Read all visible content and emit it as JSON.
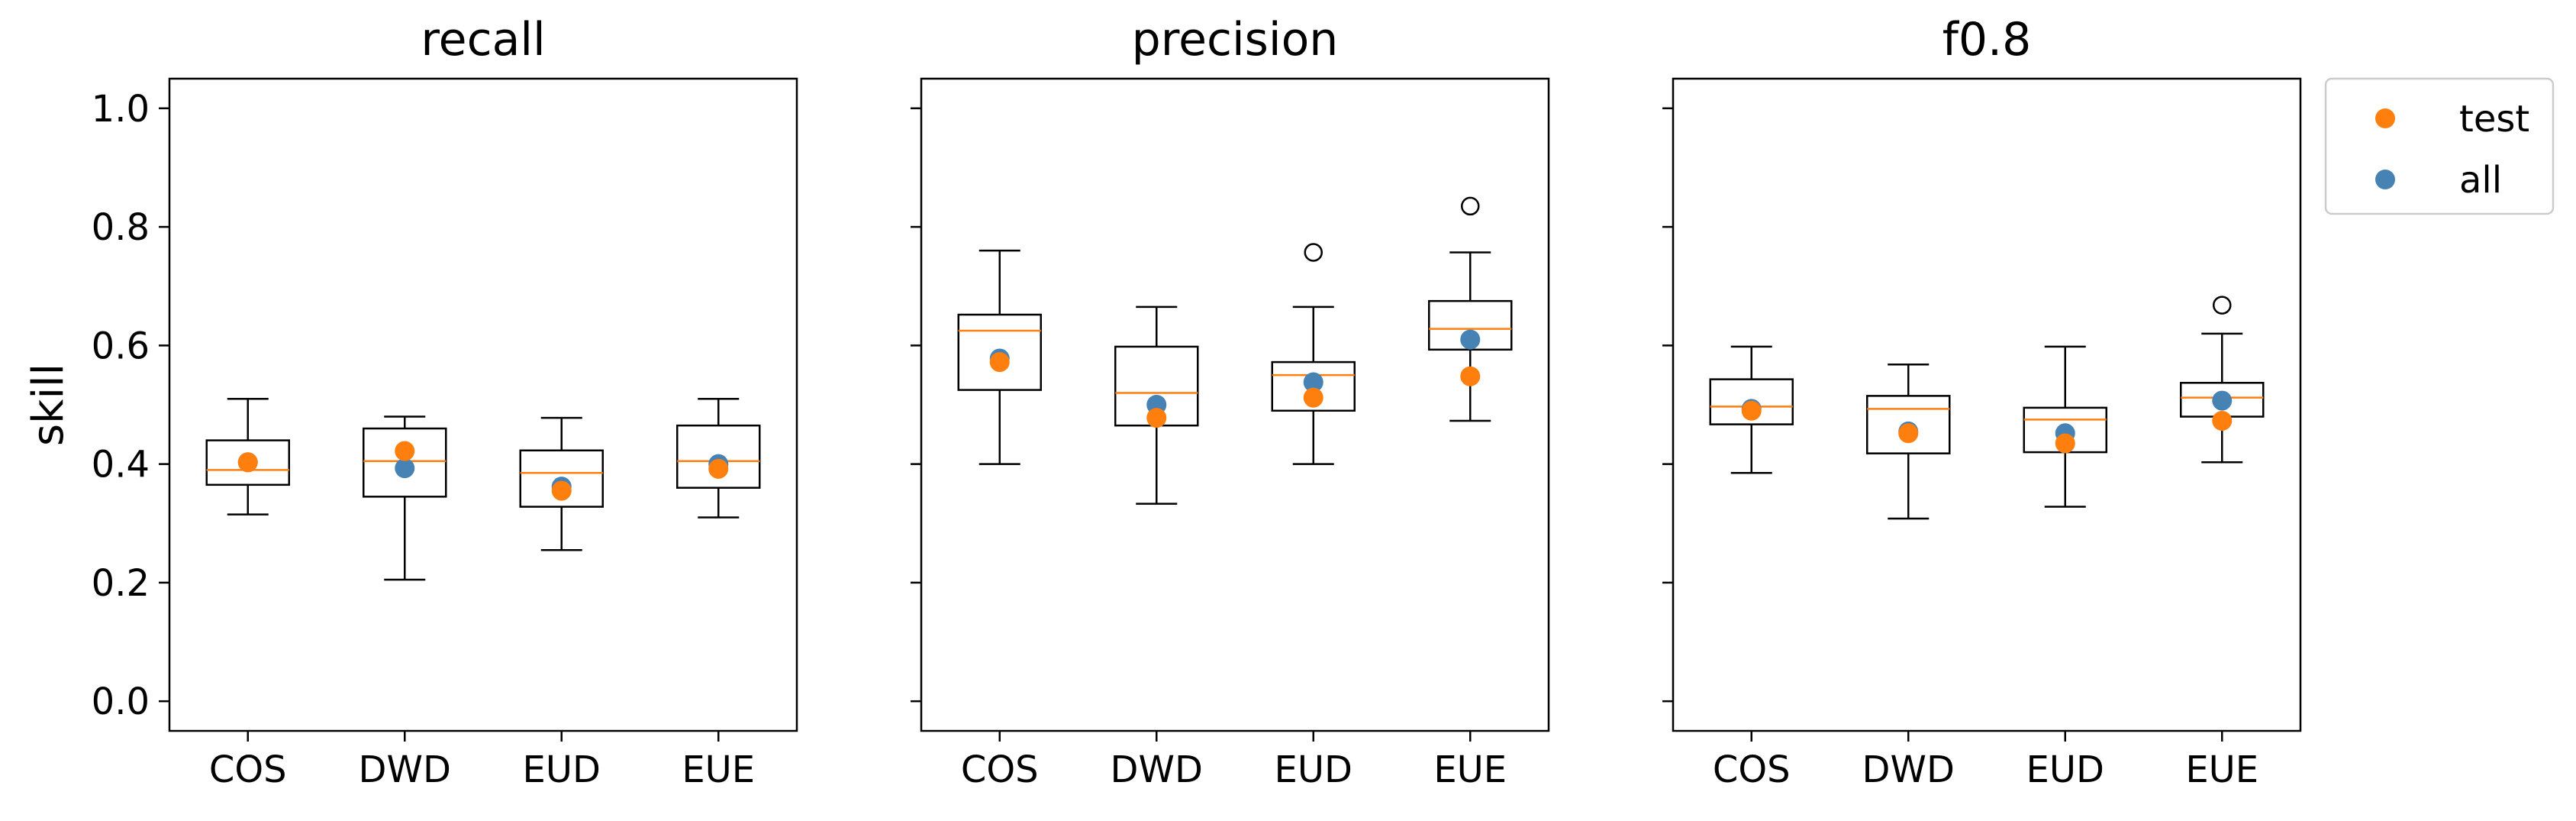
{
  "chart_data": {
    "type": "box",
    "ylabel": "skill",
    "ylim": [
      -0.05,
      1.05
    ],
    "yticks": [
      0.0,
      0.2,
      0.4,
      0.6,
      0.8,
      1.0
    ],
    "ytick_labels": [
      "0.0",
      "0.2",
      "0.4",
      "0.6",
      "0.8",
      "1.0"
    ],
    "categories": [
      "COS",
      "DWD",
      "EUD",
      "EUE"
    ],
    "colors": {
      "box": "#000000",
      "median": "#ff7f0e",
      "test": "#ff7f0e",
      "all": "#4682b4",
      "flier": "#000000"
    },
    "legend": {
      "placement": "outside-top-right",
      "entries": [
        {
          "label": "test",
          "color": "#ff7f0e"
        },
        {
          "label": "all",
          "color": "#4682b4"
        }
      ]
    },
    "panels": [
      {
        "title": "recall",
        "boxes": [
          {
            "category": "COS",
            "whislo": 0.315,
            "q1": 0.365,
            "med": 0.39,
            "q3": 0.44,
            "whishi": 0.51,
            "fliers": [],
            "all": 0.403,
            "test": 0.403
          },
          {
            "category": "DWD",
            "whislo": 0.205,
            "q1": 0.345,
            "med": 0.405,
            "q3": 0.46,
            "whishi": 0.48,
            "fliers": [],
            "all": 0.393,
            "test": 0.422
          },
          {
            "category": "EUD",
            "whislo": 0.255,
            "q1": 0.328,
            "med": 0.385,
            "q3": 0.423,
            "whishi": 0.478,
            "fliers": [],
            "all": 0.362,
            "test": 0.355
          },
          {
            "category": "EUE",
            "whislo": 0.31,
            "q1": 0.36,
            "med": 0.405,
            "q3": 0.465,
            "whishi": 0.51,
            "fliers": [],
            "all": 0.4,
            "test": 0.392
          }
        ]
      },
      {
        "title": "precision",
        "boxes": [
          {
            "category": "COS",
            "whislo": 0.4,
            "q1": 0.525,
            "med": 0.625,
            "q3": 0.652,
            "whishi": 0.76,
            "fliers": [],
            "all": 0.578,
            "test": 0.572
          },
          {
            "category": "DWD",
            "whislo": 0.333,
            "q1": 0.465,
            "med": 0.52,
            "q3": 0.598,
            "whishi": 0.665,
            "fliers": [],
            "all": 0.5,
            "test": 0.478
          },
          {
            "category": "EUD",
            "whislo": 0.4,
            "q1": 0.49,
            "med": 0.55,
            "q3": 0.572,
            "whishi": 0.665,
            "fliers": [
              0.757
            ],
            "all": 0.538,
            "test": 0.512
          },
          {
            "category": "EUE",
            "whislo": 0.473,
            "q1": 0.593,
            "med": 0.628,
            "q3": 0.675,
            "whishi": 0.757,
            "fliers": [
              0.835
            ],
            "all": 0.61,
            "test": 0.548
          }
        ]
      },
      {
        "title": "f0.8",
        "boxes": [
          {
            "category": "COS",
            "whislo": 0.385,
            "q1": 0.467,
            "med": 0.497,
            "q3": 0.543,
            "whishi": 0.598,
            "fliers": [],
            "all": 0.493,
            "test": 0.49
          },
          {
            "category": "DWD",
            "whislo": 0.308,
            "q1": 0.418,
            "med": 0.493,
            "q3": 0.515,
            "whishi": 0.568,
            "fliers": [],
            "all": 0.455,
            "test": 0.452
          },
          {
            "category": "EUD",
            "whislo": 0.328,
            "q1": 0.42,
            "med": 0.475,
            "q3": 0.495,
            "whishi": 0.598,
            "fliers": [],
            "all": 0.452,
            "test": 0.435
          },
          {
            "category": "EUE",
            "whislo": 0.403,
            "q1": 0.48,
            "med": 0.512,
            "q3": 0.537,
            "whishi": 0.62,
            "fliers": [
              0.668
            ],
            "all": 0.507,
            "test": 0.473
          }
        ]
      }
    ]
  }
}
